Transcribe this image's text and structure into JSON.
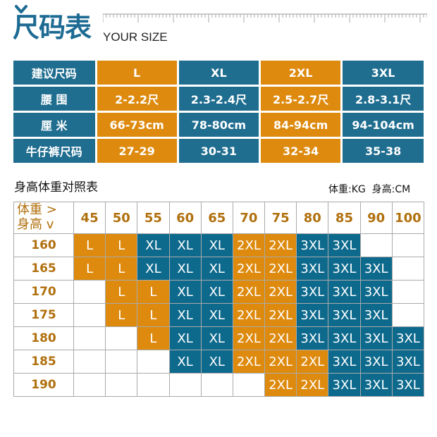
{
  "header": {
    "title_cn": "尺码表",
    "title_en": "YOUR SIZE"
  },
  "size_table": {
    "rows": [
      {
        "label": "建议尺码",
        "cells": [
          "L",
          "XL",
          "2XL",
          "3XL"
        ]
      },
      {
        "label": "腰 围",
        "cells": [
          "2-2.2尺",
          "2.3-2.4尺",
          "2.5-2.7尺",
          "2.8-3.1尺"
        ]
      },
      {
        "label": "厘 米",
        "cells": [
          "66-73cm",
          "78-80cm",
          "84-94cm",
          "94-104cm"
        ]
      },
      {
        "label": "牛仔裤尺码",
        "cells": [
          "27-29",
          "30-31",
          "32-34",
          "35-38"
        ]
      }
    ]
  },
  "hw": {
    "title": "身高体重对照表",
    "units_weight": "体重:KG",
    "units_height": "身高:CM",
    "corner_weight": "体重 >",
    "corner_height": "身高 v",
    "weights": [
      "45",
      "50",
      "55",
      "60",
      "65",
      "70",
      "75",
      "80",
      "85",
      "90",
      "100"
    ],
    "rows": [
      {
        "height": "160",
        "cells": [
          "L",
          "L",
          "XL",
          "XL",
          "XL",
          "2XL",
          "2XL",
          "3XL",
          "3XL",
          "",
          ""
        ]
      },
      {
        "height": "165",
        "cells": [
          "L",
          "L",
          "XL",
          "XL",
          "XL",
          "2XL",
          "2XL",
          "3XL",
          "3XL",
          "3XL",
          ""
        ]
      },
      {
        "height": "170",
        "cells": [
          "",
          "L",
          "L",
          "XL",
          "XL",
          "2XL",
          "2XL",
          "3XL",
          "3XL",
          "3XL",
          ""
        ]
      },
      {
        "height": "175",
        "cells": [
          "",
          "L",
          "L",
          "XL",
          "XL",
          "2XL",
          "2XL",
          "3XL",
          "3XL",
          "3XL",
          ""
        ]
      },
      {
        "height": "180",
        "cells": [
          "",
          "",
          "L",
          "XL",
          "XL",
          "2XL",
          "2XL",
          "3XL",
          "3XL",
          "3XL",
          "3XL"
        ]
      },
      {
        "height": "185",
        "cells": [
          "",
          "",
          "",
          "XL",
          "XL",
          "2XL",
          "2XL",
          "2XL",
          "3XL",
          "3XL",
          "3XL"
        ]
      },
      {
        "height": "190",
        "cells": [
          "",
          "",
          "",
          "",
          "",
          "",
          "2XL",
          "2XL",
          "3XL",
          "3XL",
          "3XL"
        ]
      }
    ]
  },
  "colors": {
    "blue": "#1f6d8f",
    "orange": "#dd8a0e",
    "brown_text": "#b0700e"
  }
}
